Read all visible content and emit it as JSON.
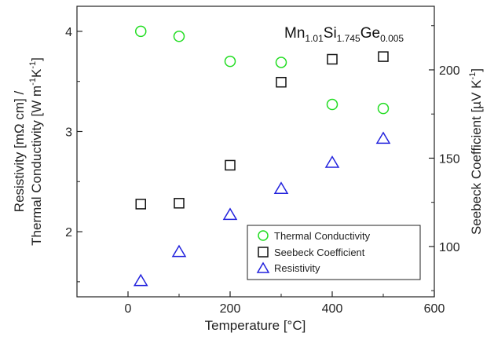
{
  "chart_data": {
    "type": "scatter",
    "annotation": {
      "parts": [
        "Mn",
        "1.01",
        "Si",
        "1.745",
        "Ge",
        "0.005"
      ]
    },
    "xlabel": "Temperature [°C]",
    "ylabel_left": [
      "Resistivity [mΩ cm] /",
      "Thermal Conductivity [W m",
      "-1",
      "K",
      "-1",
      "]"
    ],
    "ylabel_right": [
      "Seebeck Coefficient [µV K",
      "-1",
      "]"
    ],
    "xlim": [
      -100,
      600
    ],
    "ylim_left": [
      1.35,
      4.25
    ],
    "ylim_right": [
      71.5,
      236.0
    ],
    "x_ticks": [
      0,
      200,
      400,
      600
    ],
    "y_left_ticks": [
      2,
      3,
      4
    ],
    "y_right_ticks": [
      100,
      150,
      200
    ],
    "grid": false,
    "legend_position": "bottom-right",
    "series": [
      {
        "name": "Thermal Conductivity",
        "axis": "left",
        "marker": "circle",
        "color": "#22dd22",
        "x": [
          25,
          100,
          200,
          300,
          400,
          500
        ],
        "y": [
          4.0,
          3.95,
          3.7,
          3.69,
          3.27,
          3.23
        ]
      },
      {
        "name": "Seebeck Coefficient",
        "axis": "right",
        "marker": "square",
        "color": "#111111",
        "x": [
          25,
          100,
          200,
          300,
          400,
          500
        ],
        "y": [
          124,
          124.5,
          146,
          193,
          206,
          207.5
        ]
      },
      {
        "name": "Resistivity",
        "axis": "left",
        "marker": "triangle",
        "color": "#2222dd",
        "x": [
          25,
          100,
          200,
          300,
          400,
          500
        ],
        "y": [
          1.51,
          1.8,
          2.17,
          2.43,
          2.69,
          2.93
        ]
      }
    ]
  }
}
